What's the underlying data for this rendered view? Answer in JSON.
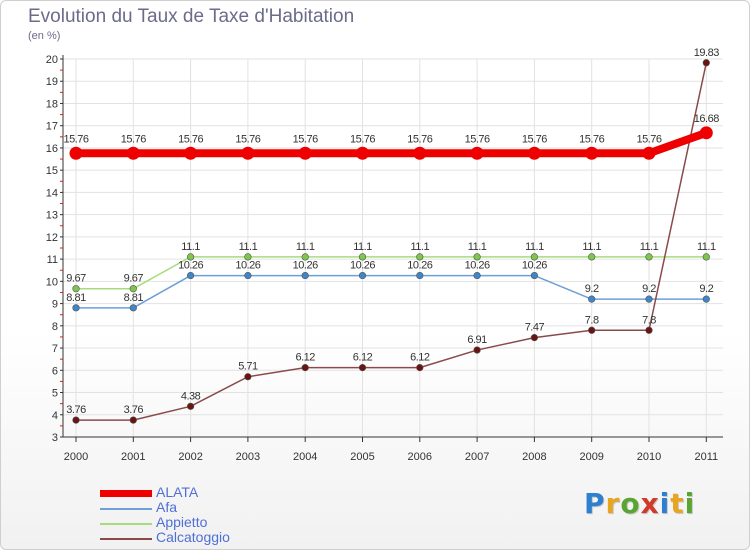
{
  "title": "Evolution du Taux de Taxe d'Habitation",
  "unit": "(en %)",
  "brand": {
    "text": "Proxiti",
    "letter_colors": [
      "#2e7fd0",
      "#e8a520",
      "#5aa532",
      "#d03a2a",
      "#2e7fd0",
      "#e8a520",
      "#5aa532"
    ]
  },
  "chart_data": {
    "type": "line",
    "title": "Evolution du Taux de Taxe d'Habitation",
    "ylabel": "(en %)",
    "xlabel": "",
    "x": [
      "2000",
      "2001",
      "2002",
      "2003",
      "2004",
      "2005",
      "2006",
      "2007",
      "2008",
      "2009",
      "2010",
      "2011"
    ],
    "ylim": [
      3,
      20
    ],
    "yticks": [
      3,
      4,
      5,
      6,
      7,
      8,
      9,
      10,
      11,
      12,
      13,
      14,
      15,
      16,
      17,
      18,
      19,
      20
    ],
    "grid": true,
    "legend": "bottom-left",
    "series": [
      {
        "name": "ALATA",
        "color": "#ee0000",
        "emphasis": true,
        "values": [
          15.76,
          15.76,
          15.76,
          15.76,
          15.76,
          15.76,
          15.76,
          15.76,
          15.76,
          15.76,
          15.76,
          16.68
        ],
        "labels": [
          "15.76",
          "15.76",
          "15.76",
          "15.76",
          "15.76",
          "15.76",
          "15.76",
          "15.76",
          "15.76",
          "15.76",
          "15.76",
          "16.68"
        ]
      },
      {
        "name": "Afa",
        "color": "#6e9fd6",
        "dot": "#3f86c9",
        "emphasis": false,
        "values": [
          8.81,
          8.81,
          10.26,
          10.26,
          10.26,
          10.26,
          10.26,
          10.26,
          10.26,
          9.2,
          9.2,
          9.2
        ],
        "labels": [
          "8.81",
          "8.81",
          "10.26",
          "10.26",
          "10.26",
          "10.26",
          "10.26",
          "10.26",
          "10.26",
          "9.2",
          "9.2",
          "9.2"
        ]
      },
      {
        "name": "Appietto",
        "color": "#a6dc7e",
        "dot": "#7cc84a",
        "emphasis": false,
        "values": [
          9.67,
          9.67,
          11.1,
          11.1,
          11.1,
          11.1,
          11.1,
          11.1,
          11.1,
          11.1,
          11.1,
          11.1
        ],
        "labels": [
          "9.67",
          "9.67",
          "11.1",
          "11.1",
          "11.1",
          "11.1",
          "11.1",
          "11.1",
          "11.1",
          "11.1",
          "11.1",
          "11.1"
        ]
      },
      {
        "name": "Calcatoggio",
        "color": "#8a4a4a",
        "dot": "#6a1414",
        "emphasis": false,
        "values": [
          3.76,
          3.76,
          4.38,
          5.71,
          6.12,
          6.12,
          6.12,
          6.91,
          7.47,
          7.8,
          7.8,
          19.83
        ],
        "labels": [
          "3.76",
          "3.76",
          "4.38",
          "5.71",
          "6.12",
          "6.12",
          "6.12",
          "6.91",
          "7.47",
          "7.8",
          "7.8",
          "19.83"
        ]
      }
    ]
  }
}
